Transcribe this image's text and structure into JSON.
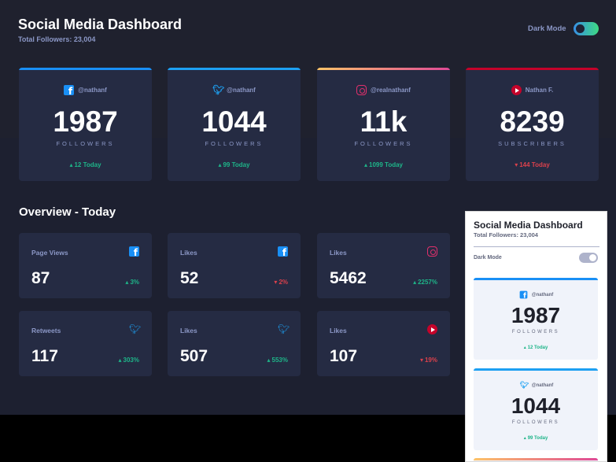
{
  "app": {
    "title": "Social Media Dashboard",
    "total_followers": "Total Followers: 23,004",
    "dark_mode_label": "Dark Mode"
  },
  "colors": {
    "facebook": "#198ff5",
    "twitter": "#1da0f2",
    "instagram_gradient": [
      "#fdc468",
      "#df4996"
    ],
    "youtube": "#c4032a",
    "up": "#1eb589",
    "down": "#dc414c"
  },
  "cards": [
    {
      "icon": "facebook-icon",
      "handle": "@nathanf",
      "count": "1987",
      "unit": "FOLLOWERS",
      "today": "12 Today",
      "trend": "up"
    },
    {
      "icon": "twitter-icon",
      "handle": "@nathanf",
      "count": "1044",
      "unit": "FOLLOWERS",
      "today": "99 Today",
      "trend": "up"
    },
    {
      "icon": "instagram-icon",
      "handle": "@realnathanf",
      "count": "11k",
      "unit": "FOLLOWERS",
      "today": "1099 Today",
      "trend": "up"
    },
    {
      "icon": "youtube-icon",
      "handle": "Nathan F.",
      "count": "8239",
      "unit": "SUBSCRIBERS",
      "today": "144 Today",
      "trend": "down"
    }
  ],
  "overview": {
    "title": "Overview - Today",
    "items": [
      {
        "label": "Page Views",
        "icon": "facebook-icon",
        "value": "87",
        "pct": "3%",
        "trend": "up"
      },
      {
        "label": "Likes",
        "icon": "facebook-icon",
        "value": "52",
        "pct": "2%",
        "trend": "down"
      },
      {
        "label": "Likes",
        "icon": "instagram-icon",
        "value": "5462",
        "pct": "2257%",
        "trend": "up"
      },
      {
        "label": "Retweets",
        "icon": "twitter-icon",
        "value": "117",
        "pct": "303%",
        "trend": "up"
      },
      {
        "label": "Likes",
        "icon": "twitter-icon",
        "value": "507",
        "pct": "553%",
        "trend": "up"
      },
      {
        "label": "Likes",
        "icon": "youtube-icon",
        "value": "107",
        "pct": "19%",
        "trend": "down"
      }
    ]
  },
  "light_preview": {
    "title": "Social Media Dashboard",
    "total_followers": "Total Followers: 23,004",
    "dark_mode_label": "Dark Mode",
    "cards": [
      {
        "icon": "facebook-icon",
        "handle": "@nathanf",
        "count": "1987",
        "unit": "FOLLOWERS",
        "today": "12 Today"
      },
      {
        "icon": "twitter-icon",
        "handle": "@nathanf",
        "count": "1044",
        "unit": "FOLLOWERS",
        "today": "99 Today"
      }
    ]
  }
}
